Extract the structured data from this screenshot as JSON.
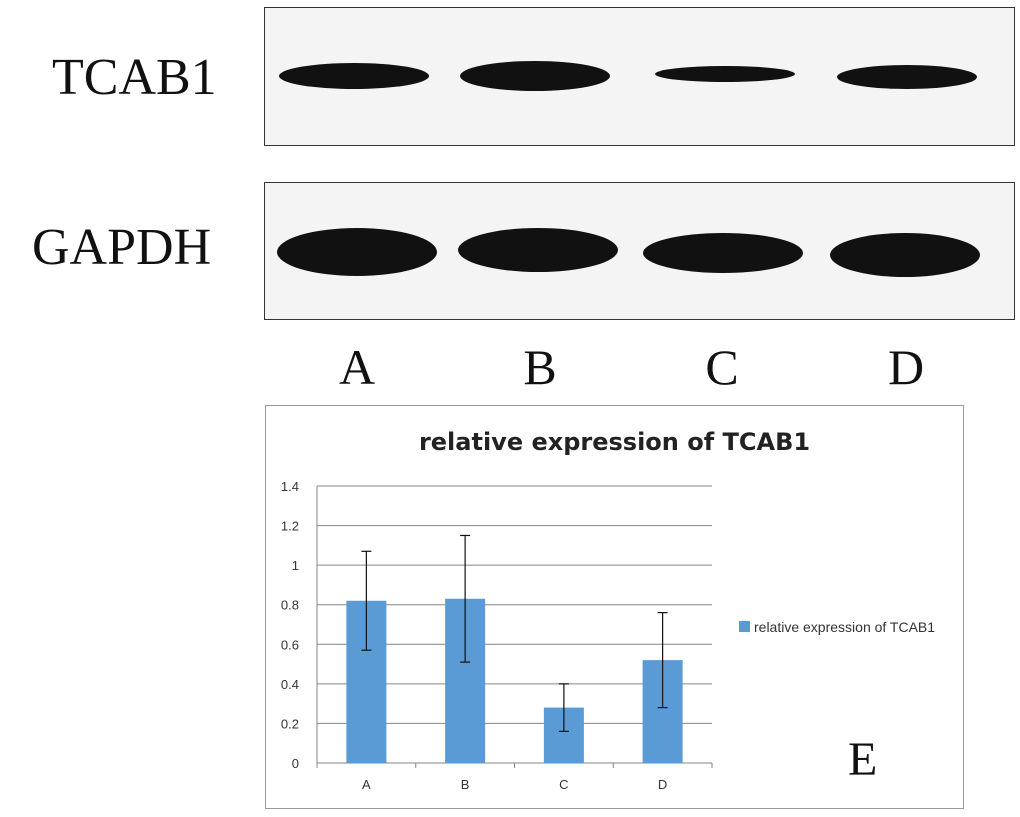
{
  "blot": {
    "rows": [
      {
        "label": "TCAB1",
        "intensities": [
          0.85,
          0.95,
          0.45,
          0.75
        ]
      },
      {
        "label": "GAPDH",
        "intensities": [
          1.0,
          1.0,
          0.95,
          0.95
        ]
      }
    ],
    "lanes": [
      "A",
      "B",
      "C",
      "D"
    ]
  },
  "panel_letter": "E",
  "chart_data": {
    "type": "bar",
    "title": "relative expression of TCAB1",
    "categories": [
      "A",
      "B",
      "C",
      "D"
    ],
    "series": [
      {
        "name": "relative expression of TCAB1",
        "values": [
          0.82,
          0.83,
          0.28,
          0.52
        ],
        "errors": [
          0.25,
          0.32,
          0.12,
          0.24
        ],
        "color": "#5B9BD5"
      }
    ],
    "ylim": [
      0,
      1.4
    ],
    "yticks": [
      "0",
      "0.2",
      "0.4",
      "0.6",
      "0.8",
      "1",
      "1.2",
      "1.4"
    ],
    "grid": true,
    "legend": "right"
  }
}
